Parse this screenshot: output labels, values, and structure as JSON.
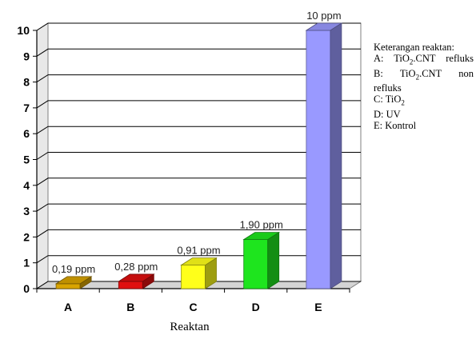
{
  "chart_data": {
    "type": "bar",
    "style": "3d",
    "categories": [
      "A",
      "B",
      "C",
      "D",
      "E"
    ],
    "values": [
      0.19,
      0.28,
      0.91,
      1.9,
      10
    ],
    "value_labels": [
      "0,19 ppm",
      "0,28 ppm",
      "0,91 ppm",
      "1,90 ppm",
      "10 ppm"
    ],
    "colors": [
      "#d9a400",
      "#e01010",
      "#ffff1a",
      "#1ee51e",
      "#9999ff"
    ],
    "xlabel": "Reaktan",
    "ylabel": "",
    "ylim": [
      0,
      10
    ],
    "yticks": [
      "0",
      "1",
      "2",
      "3",
      "4",
      "5",
      "6",
      "7",
      "8",
      "9",
      "10"
    ],
    "grid": true,
    "legend": "none"
  },
  "note": {
    "title": "Keterangan reaktan:",
    "lines": [
      {
        "pre": "A: TiO",
        "sub": "2",
        "post": ".CNT refluks"
      },
      {
        "pre": "B: TiO",
        "sub": "2",
        "post": ".CNT non"
      },
      {
        "pre": "refluks",
        "sub": "",
        "post": ""
      },
      {
        "pre": "C: TiO",
        "sub": "2",
        "post": ""
      },
      {
        "pre": "D: UV",
        "sub": "",
        "post": ""
      },
      {
        "pre": "E: Kontrol",
        "sub": "",
        "post": ""
      }
    ]
  }
}
